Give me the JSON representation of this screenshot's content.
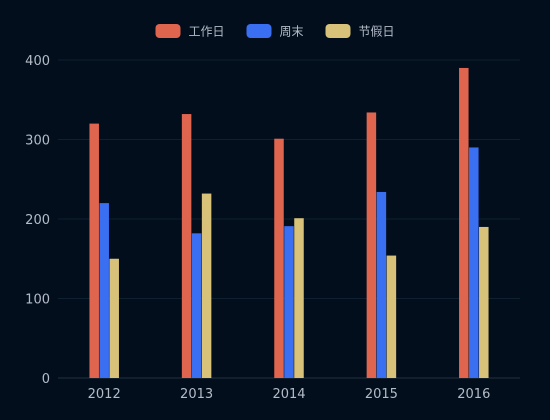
{
  "chart_data": {
    "type": "bar",
    "categories": [
      "2012",
      "2013",
      "2014",
      "2015",
      "2016"
    ],
    "series": [
      {
        "name": "工作日",
        "color": "#e0654f",
        "values": [
          320,
          332,
          301,
          334,
          390
        ]
      },
      {
        "name": "周末",
        "color": "#3a6ff2",
        "values": [
          220,
          182,
          191,
          234,
          290
        ]
      },
      {
        "name": "节假日",
        "color": "#d8c27a",
        "values": [
          150,
          232,
          201,
          154,
          190
        ]
      }
    ],
    "ylim": [
      0,
      400
    ],
    "yticks": [
      0,
      100,
      200,
      300,
      400
    ],
    "legend_position": "top-center",
    "grid": true,
    "background": "#020e1c",
    "text_color": "#b4bcc8",
    "grid_color": "#0f2030"
  }
}
